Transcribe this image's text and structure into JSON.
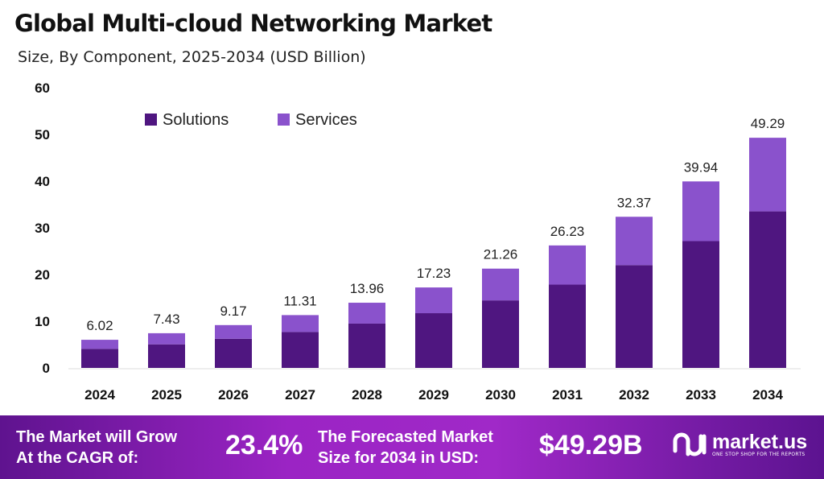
{
  "title": "Global Multi-cloud Networking Market",
  "subtitle": "Size, By Component, 2025-2034 (USD Billion)",
  "chart_data": {
    "type": "bar",
    "stacked": true,
    "categories": [
      "2024",
      "2025",
      "2026",
      "2027",
      "2028",
      "2029",
      "2030",
      "2031",
      "2032",
      "2033",
      "2034"
    ],
    "series": [
      {
        "name": "Solutions",
        "color": "#4f1680",
        "values": [
          4.09,
          5.05,
          6.24,
          7.69,
          9.49,
          11.72,
          14.46,
          17.84,
          22.01,
          27.16,
          33.52
        ]
      },
      {
        "name": "Services",
        "color": "#8a52cc",
        "values": [
          1.93,
          2.38,
          2.93,
          3.62,
          4.47,
          5.51,
          6.8,
          8.39,
          10.36,
          12.78,
          15.77
        ]
      }
    ],
    "totals": [
      "6.02",
      "7.43",
      "9.17",
      "11.31",
      "13.96",
      "17.23",
      "21.26",
      "26.23",
      "32.37",
      "39.94",
      "49.29"
    ],
    "yticks": [
      "0",
      "10",
      "20",
      "30",
      "40",
      "50",
      "60"
    ],
    "ylim": [
      0,
      60
    ],
    "legend": "top-left",
    "grid": false
  },
  "footer": {
    "cagr_label_1": "The Market will Grow",
    "cagr_label_2": "At the CAGR of:",
    "cagr_value": "23.4%",
    "forecast_label_1": "The Forecasted Market",
    "forecast_label_2": "Size for 2034 in USD:",
    "forecast_value": "$49.29B",
    "logo_text": "market.us",
    "logo_tagline": "ONE STOP SHOP FOR THE REPORTS"
  }
}
